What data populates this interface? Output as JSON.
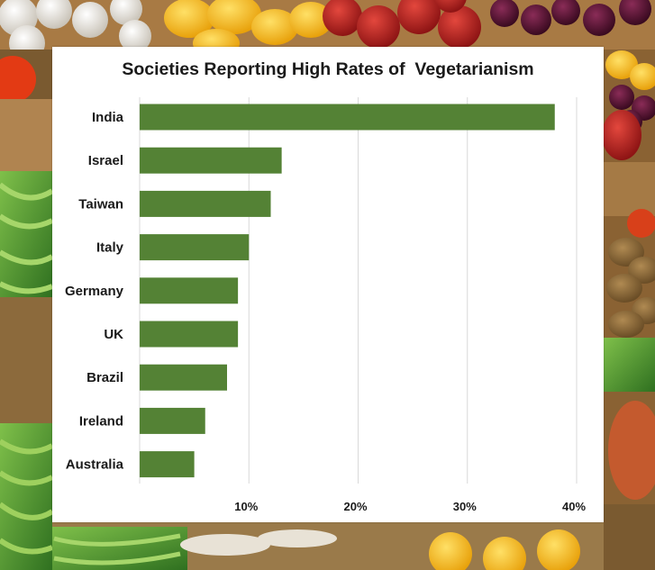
{
  "colors": {
    "bar": "#548235",
    "grid": "#d9d9d9",
    "panel": "#ffffff",
    "text": "#1a1a1a"
  },
  "background": {
    "description_icon": "fruit-and-vegetable-market-photo"
  },
  "chart_data": {
    "type": "bar",
    "orientation": "horizontal",
    "title": "Societies Reporting High Rates of  Vegetarianism",
    "xlabel": "",
    "ylabel": "",
    "categories": [
      "India",
      "Israel",
      "Taiwan",
      "Italy",
      "Germany",
      "UK",
      "Brazil",
      "Ireland",
      "Australia"
    ],
    "values": [
      38,
      13,
      12,
      10,
      9,
      9,
      8,
      6,
      5
    ],
    "value_unit": "%",
    "xlim": [
      0,
      40
    ],
    "xticks": [
      10,
      20,
      30,
      40
    ],
    "xtick_labels": [
      "10%",
      "20%",
      "30%",
      "40%"
    ],
    "grid": true,
    "legend": "none"
  }
}
